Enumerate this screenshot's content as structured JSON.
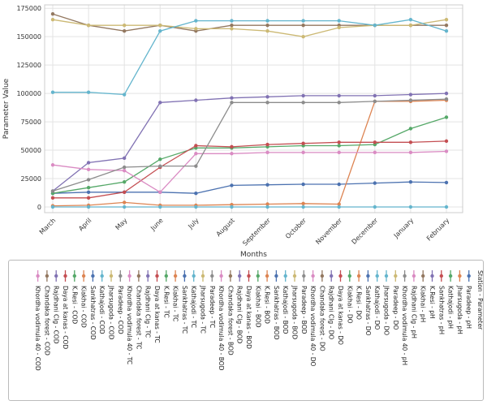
{
  "chart_data": {
    "type": "line",
    "title": "",
    "xlabel": "Months",
    "ylabel": "Parameter Value",
    "x": [
      "March",
      "April",
      "May",
      "June",
      "July",
      "August",
      "September",
      "October",
      "November",
      "December",
      "January",
      "February"
    ],
    "yticks": [
      0,
      25000,
      50000,
      75000,
      100000,
      125000,
      150000,
      175000
    ],
    "ytick_labels": [
      "0",
      "25000",
      "50000",
      "75000",
      "100000",
      "125000",
      "150000",
      "175000"
    ],
    "ylim": [
      -5000,
      178000
    ],
    "grid": true,
    "legend_title": "Station - Parameter",
    "legend_placement": "below",
    "series": [
      {
        "name": "Paradeep - pH",
        "color": "#4c72b0",
        "values": [
          12000,
          13000,
          13000,
          13000,
          12000,
          19000,
          19500,
          20000,
          20000,
          21000,
          22000,
          21500
        ]
      },
      {
        "name": "Jharsugoda - pH",
        "color": "#dd8452",
        "values": [
          1000,
          1500,
          4000,
          1500,
          1500,
          2000,
          2500,
          3000,
          2500,
          93000,
          93000,
          94000
        ]
      },
      {
        "name": "Kathajodi - pH",
        "color": "#55a868",
        "values": [
          12000,
          17000,
          22000,
          42000,
          52000,
          52000,
          53000,
          54000,
          54000,
          55000,
          69000,
          79000
        ]
      },
      {
        "name": "Sankhatras - pH",
        "color": "#c44e52",
        "values": [
          8000,
          8000,
          13000,
          35000,
          54000,
          53000,
          55000,
          56000,
          57000,
          57000,
          57000,
          58000
        ]
      },
      {
        "name": "K.Resi - pH",
        "color": "#8172b3",
        "values": [
          14000,
          39000,
          43000,
          92000,
          94000,
          96000,
          97000,
          98000,
          98000,
          98000,
          99000,
          100000
        ]
      },
      {
        "name": "Kiakhai - pH",
        "color": "#937860",
        "values": [
          170000,
          160000,
          155000,
          160000,
          155000,
          160000,
          160000,
          160000,
          160000,
          160000,
          160000,
          160000
        ]
      },
      {
        "name": "Rajdhani Clg - pH",
        "color": "#da8bc3",
        "values": [
          37000,
          33000,
          32000,
          13000,
          47000,
          47000,
          48000,
          48000,
          48000,
          48000,
          48000,
          49000
        ]
      },
      {
        "name": "Khordha vodimula 40 - pH",
        "color": "#8c8c8c",
        "values": [
          14000,
          24000,
          35000,
          36000,
          36000,
          92000,
          92000,
          92000,
          92000,
          93000,
          94000,
          95000
        ]
      },
      {
        "name": "Paradeep - DO",
        "color": "#ccb974",
        "values": [
          165000,
          160000,
          160000,
          160000,
          157000,
          157000,
          155000,
          150000,
          158000,
          160000,
          160000,
          165000
        ]
      },
      {
        "name": "Jharsugoda - DO",
        "color": "#64b5cd",
        "values": [
          101000,
          101000,
          99000,
          155000,
          164000,
          164000,
          164000,
          164000,
          164000,
          160000,
          165000,
          155000
        ]
      },
      {
        "name": "Kathajodi - DO",
        "color": "#64b5cd",
        "values": [
          0,
          0,
          0,
          0,
          0,
          0,
          0,
          0,
          0,
          0,
          0,
          0
        ]
      },
      {
        "name": "Sankhatras - DO",
        "color": "#4c72b0",
        "values": null
      },
      {
        "name": "K.Resi - DO",
        "color": "#dd8452",
        "values": null
      },
      {
        "name": "Kiakhai - DO",
        "color": "#55a868",
        "values": null
      },
      {
        "name": "Daya at kanas - DO",
        "color": "#c44e52",
        "values": null
      },
      {
        "name": "Rajdhani Clg - DO",
        "color": "#8172b3",
        "values": null
      },
      {
        "name": "Chandaka forest - DO",
        "color": "#937860",
        "values": null
      },
      {
        "name": "Khordha vodimula 40 - DO",
        "color": "#da8bc3",
        "values": null
      },
      {
        "name": "Paradeep - BOD",
        "color": "#8c8c8c",
        "values": null
      },
      {
        "name": "Jharsugoda - BOD",
        "color": "#ccb974",
        "values": null
      },
      {
        "name": "Kathajodi - BOD",
        "color": "#64b5cd",
        "values": null
      },
      {
        "name": "Sankhatras - BOD",
        "color": "#4c72b0",
        "values": null
      },
      {
        "name": "K.Resi - BOD",
        "color": "#dd8452",
        "values": null
      },
      {
        "name": "Kiakhai - BOD",
        "color": "#55a868",
        "values": null
      },
      {
        "name": "Daya at kanas - BOD",
        "color": "#c44e52",
        "values": null
      },
      {
        "name": "Rajdhani Clg - BOD",
        "color": "#8172b3",
        "values": null
      },
      {
        "name": "Chandaka forest - BOD",
        "color": "#937860",
        "values": null
      },
      {
        "name": "Khordha vodimula 40 - BOD",
        "color": "#da8bc3",
        "values": null
      },
      {
        "name": "Paradeep - TC",
        "color": "#8c8c8c",
        "values": null
      },
      {
        "name": "Jharsugoda - TC",
        "color": "#ccb974",
        "values": null
      },
      {
        "name": "Kathajodi - TC",
        "color": "#64b5cd",
        "values": null
      },
      {
        "name": "Sankhatras - TC",
        "color": "#4c72b0",
        "values": null
      },
      {
        "name": "Kiakhai - TC",
        "color": "#dd8452",
        "values": null
      },
      {
        "name": "K.Resi - TC",
        "color": "#55a868",
        "values": null
      },
      {
        "name": "Daya at kanas - TC",
        "color": "#c44e52",
        "values": null
      },
      {
        "name": "Rajdhani Clg - TC",
        "color": "#8172b3",
        "values": null
      },
      {
        "name": "Chandaka forest - TC",
        "color": "#937860",
        "values": null
      },
      {
        "name": "Khordha vodimula 40 - TC",
        "color": "#da8bc3",
        "values": null
      },
      {
        "name": "Paradeep - COD",
        "color": "#8c8c8c",
        "values": null
      },
      {
        "name": "Jharsugoda - COD",
        "color": "#ccb974",
        "values": null
      },
      {
        "name": "Kathajodi - COD",
        "color": "#64b5cd",
        "values": null
      },
      {
        "name": "Sankhatras - COD",
        "color": "#4c72b0",
        "values": null
      },
      {
        "name": "Kiakhai - COD",
        "color": "#dd8452",
        "values": null
      },
      {
        "name": "K.Resi - COD",
        "color": "#55a868",
        "values": null
      },
      {
        "name": "Daya at kanas - COD",
        "color": "#c44e52",
        "values": null
      },
      {
        "name": "Rajdhani Clg - COD",
        "color": "#8172b3",
        "values": null
      },
      {
        "name": "Chandaka forest - COD",
        "color": "#937860",
        "values": null
      },
      {
        "name": "Khordha vodimula 40 - COD",
        "color": "#da8bc3",
        "values": null
      }
    ]
  }
}
